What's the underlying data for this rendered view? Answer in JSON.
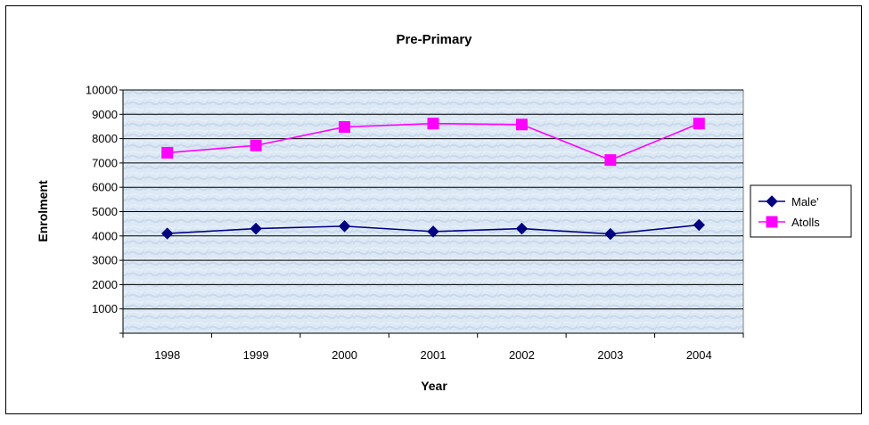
{
  "chart_data": {
    "type": "line",
    "title": "Pre-Primary",
    "xlabel": "Year",
    "ylabel": "Enrolment",
    "categories": [
      "1998",
      "1999",
      "2000",
      "2001",
      "2002",
      "2003",
      "2004"
    ],
    "yticks": [
      "1000",
      "2000",
      "3000",
      "4000",
      "5000",
      "6000",
      "7000",
      "8000",
      "9000",
      "10000"
    ],
    "ylim": [
      0,
      10000
    ],
    "grid": true,
    "legend_position": "right",
    "series": [
      {
        "name": "Male'",
        "values": [
          4100,
          4300,
          4400,
          4180,
          4300,
          4080,
          4450
        ],
        "color": "#000080",
        "marker": "diamond"
      },
      {
        "name": "Atolls",
        "values": [
          7420,
          7720,
          8480,
          8620,
          8580,
          7120,
          8620
        ],
        "color": "#ff00ff",
        "marker": "square"
      }
    ]
  },
  "colors": {
    "plot_background": "#dce8f4",
    "gridline": "#000000"
  }
}
